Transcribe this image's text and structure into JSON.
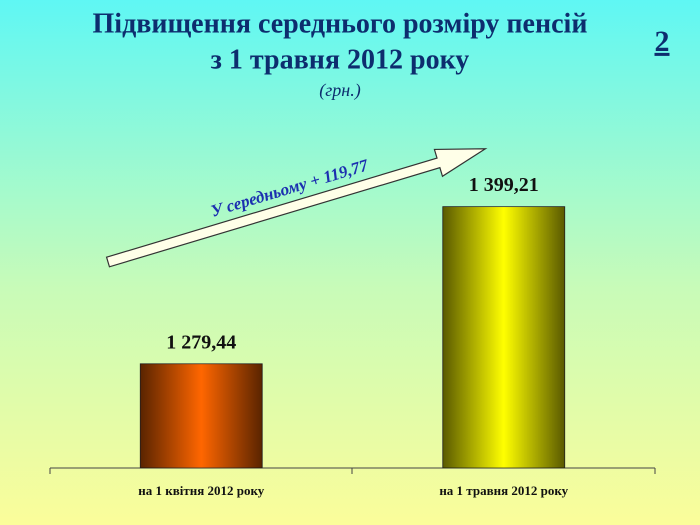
{
  "chart_data": {
    "type": "bar",
    "title": [
      "Підвищення середнього розміру пенсій",
      "з 1 травня 2012 року"
    ],
    "subtitle": "(грн.)",
    "page_number": "2",
    "annotation": "У середньому + 119,77",
    "categories": [
      "на 1 квітня 2012 року",
      "на 1 травня 2012 року"
    ],
    "values": [
      1279.44,
      1399.21
    ],
    "value_labels": [
      "1 279,44",
      "1 399,21"
    ],
    "colors": [
      "#ff6600",
      "#ffff00"
    ],
    "ylim": [
      1200,
      1450
    ]
  }
}
